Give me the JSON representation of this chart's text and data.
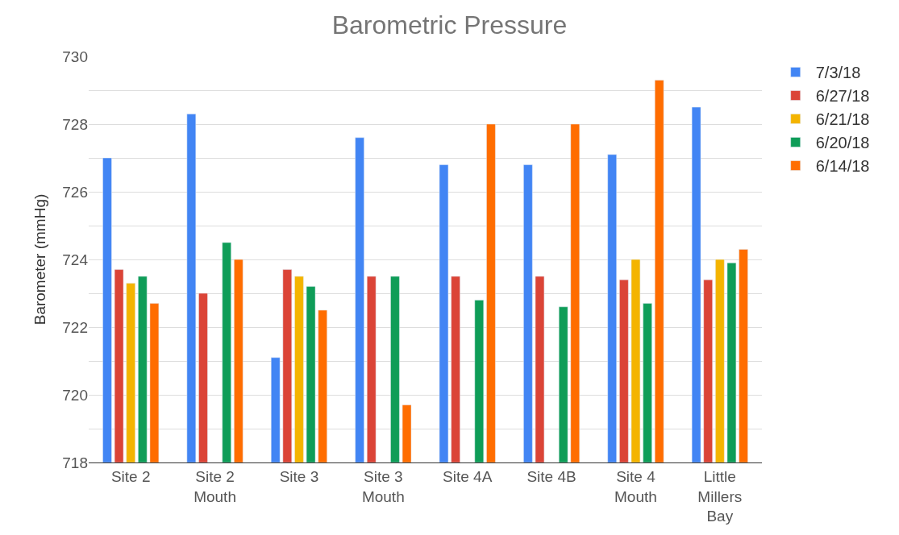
{
  "chart_data": {
    "type": "bar",
    "title": "Barometric Pressure",
    "ylabel": "Barometer (mmHg)",
    "categories": [
      "Site 2",
      "Site 2\nMouth",
      "Site 3",
      "Site 3\nMouth",
      "Site 4A",
      "Site 4B",
      "Site 4\nMouth",
      "Little\nMillers\nBay"
    ],
    "series": [
      {
        "name": "7/3/18",
        "color": "#4285f4",
        "values": [
          727.0,
          728.3,
          721.1,
          727.6,
          726.8,
          726.8,
          727.1,
          728.5
        ]
      },
      {
        "name": "6/27/18",
        "color": "#db4437",
        "values": [
          723.7,
          723.0,
          723.7,
          723.5,
          723.5,
          723.5,
          723.4,
          723.4
        ]
      },
      {
        "name": "6/21/18",
        "color": "#f4b400",
        "values": [
          723.3,
          null,
          723.5,
          null,
          null,
          null,
          724.0,
          724.0
        ]
      },
      {
        "name": "6/20/18",
        "color": "#0f9d58",
        "values": [
          723.5,
          724.5,
          723.2,
          723.5,
          722.8,
          722.6,
          722.7,
          723.9
        ]
      },
      {
        "name": "6/14/18",
        "color": "#ff6d00",
        "values": [
          722.7,
          724.0,
          722.5,
          719.7,
          728.0,
          728.0,
          729.3,
          724.3
        ]
      }
    ],
    "ylim": [
      718,
      730
    ],
    "yticks": [
      718,
      {
        "value": 719,
        "label": null
      },
      720,
      {
        "value": 721,
        "label": null
      },
      722,
      {
        "value": 723,
        "label": null
      },
      724,
      {
        "value": 725,
        "label": null
      },
      726,
      {
        "value": 727,
        "label": null
      },
      728,
      {
        "value": 729,
        "label": null
      },
      730
    ],
    "grid": "y",
    "legend": "top right"
  }
}
